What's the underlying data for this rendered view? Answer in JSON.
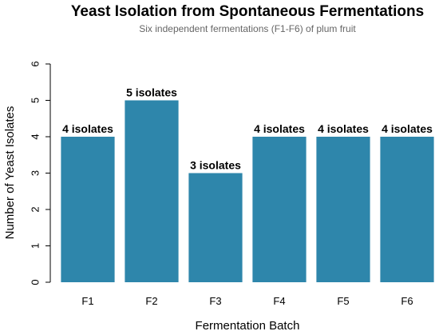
{
  "chart_data": {
    "type": "bar",
    "title": "Yeast Isolation from Spontaneous Fermentations",
    "subtitle": "Six independent fermentations (F1-F6) of plum fruit",
    "xlabel": "Fermentation Batch",
    "ylabel": "Number of Yeast Isolates",
    "categories": [
      "F1",
      "F2",
      "F3",
      "F4",
      "F5",
      "F6"
    ],
    "values": [
      4,
      5,
      3,
      4,
      4,
      4
    ],
    "data_labels": [
      "4 isolates",
      "5 isolates",
      "3 isolates",
      "4 isolates",
      "4 isolates",
      "4 isolates"
    ],
    "ylim": [
      0,
      6
    ],
    "yticks": [
      "0",
      "1",
      "2",
      "3",
      "4",
      "5",
      "6"
    ],
    "bar_color": "#2E86AB",
    "grid": false,
    "legend": "none"
  }
}
